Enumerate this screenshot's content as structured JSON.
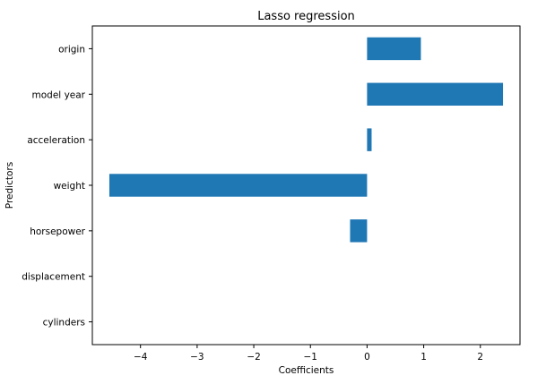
{
  "chart_data": {
    "type": "bar",
    "orientation": "horizontal",
    "title": "Lasso regression",
    "xlabel": "Coefficients",
    "ylabel": "Predictors",
    "categories": [
      "cylinders",
      "displacement",
      "horsepower",
      "weight",
      "acceleration",
      "model year",
      "origin"
    ],
    "values": [
      0.0,
      0.0,
      -0.3,
      -4.55,
      0.08,
      2.4,
      0.95
    ],
    "xlim": [
      -4.85,
      2.7
    ],
    "xticks": [
      -4,
      -3,
      -2,
      -1,
      0,
      1,
      2
    ],
    "xtick_labels": [
      "−4",
      "−3",
      "−2",
      "−1",
      "0",
      "1",
      "2"
    ],
    "grid": false,
    "bar_color": "#1f77b4"
  }
}
